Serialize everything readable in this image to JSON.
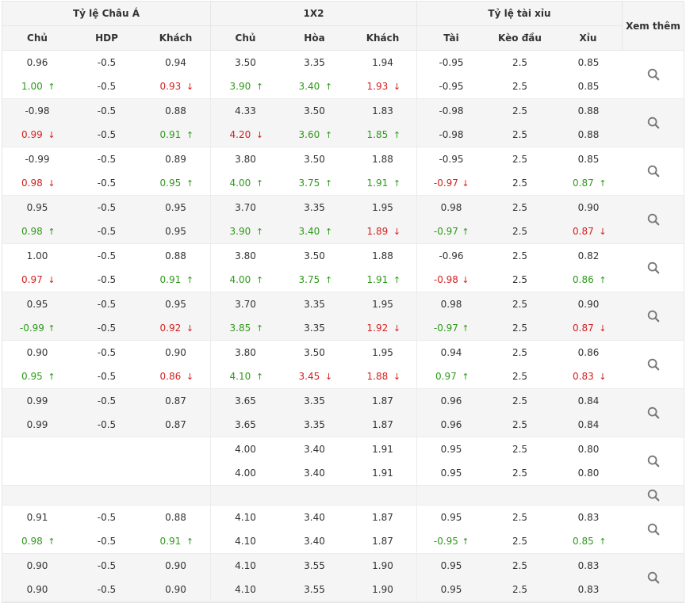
{
  "groups": {
    "asian": "Tỷ lệ Châu Á",
    "x12": "1X2",
    "overunder": "Tỷ lệ tài xỉu",
    "more": "Xem thêm"
  },
  "columns": [
    "Chủ",
    "HDP",
    "Khách",
    "Chủ",
    "Hòa",
    "Khách",
    "Tài",
    "Kèo đầu",
    "Xỉu"
  ],
  "icons": {
    "search": "search-icon"
  },
  "colors": {
    "up": "#2e9a1a",
    "down": "#d42020",
    "alt_bg": "#f5f5f5"
  },
  "rows": [
    {
      "alt": false,
      "lines": [
        [
          [
            "0.96",
            ""
          ],
          [
            "-0.5",
            ""
          ],
          [
            "0.94",
            ""
          ],
          [
            "3.50",
            ""
          ],
          [
            "3.35",
            ""
          ],
          [
            "1.94",
            ""
          ],
          [
            "-0.95",
            ""
          ],
          [
            "2.5",
            ""
          ],
          [
            "0.85",
            ""
          ]
        ],
        [
          [
            "1.00",
            "up"
          ],
          [
            "-0.5",
            ""
          ],
          [
            "0.93",
            "down"
          ],
          [
            "3.90",
            "up"
          ],
          [
            "3.40",
            "up"
          ],
          [
            "1.93",
            "down"
          ],
          [
            "-0.95",
            ""
          ],
          [
            "2.5",
            ""
          ],
          [
            "0.85",
            ""
          ]
        ]
      ]
    },
    {
      "alt": true,
      "lines": [
        [
          [
            "-0.98",
            ""
          ],
          [
            "-0.5",
            ""
          ],
          [
            "0.88",
            ""
          ],
          [
            "4.33",
            ""
          ],
          [
            "3.50",
            ""
          ],
          [
            "1.83",
            ""
          ],
          [
            "-0.98",
            ""
          ],
          [
            "2.5",
            ""
          ],
          [
            "0.88",
            ""
          ]
        ],
        [
          [
            "0.99",
            "down"
          ],
          [
            "-0.5",
            ""
          ],
          [
            "0.91",
            "up"
          ],
          [
            "4.20",
            "down"
          ],
          [
            "3.60",
            "up"
          ],
          [
            "1.85",
            "up"
          ],
          [
            "-0.98",
            ""
          ],
          [
            "2.5",
            ""
          ],
          [
            "0.88",
            ""
          ]
        ]
      ]
    },
    {
      "alt": false,
      "lines": [
        [
          [
            "-0.99",
            ""
          ],
          [
            "-0.5",
            ""
          ],
          [
            "0.89",
            ""
          ],
          [
            "3.80",
            ""
          ],
          [
            "3.50",
            ""
          ],
          [
            "1.88",
            ""
          ],
          [
            "-0.95",
            ""
          ],
          [
            "2.5",
            ""
          ],
          [
            "0.85",
            ""
          ]
        ],
        [
          [
            "0.98",
            "down"
          ],
          [
            "-0.5",
            ""
          ],
          [
            "0.95",
            "up"
          ],
          [
            "4.00",
            "up"
          ],
          [
            "3.75",
            "up"
          ],
          [
            "1.91",
            "up"
          ],
          [
            "-0.97",
            "down"
          ],
          [
            "2.5",
            ""
          ],
          [
            "0.87",
            "up"
          ]
        ]
      ]
    },
    {
      "alt": true,
      "lines": [
        [
          [
            "0.95",
            ""
          ],
          [
            "-0.5",
            ""
          ],
          [
            "0.95",
            ""
          ],
          [
            "3.70",
            ""
          ],
          [
            "3.35",
            ""
          ],
          [
            "1.95",
            ""
          ],
          [
            "0.98",
            ""
          ],
          [
            "2.5",
            ""
          ],
          [
            "0.90",
            ""
          ]
        ],
        [
          [
            "0.98",
            "up"
          ],
          [
            "-0.5",
            ""
          ],
          [
            "0.95",
            ""
          ],
          [
            "3.90",
            "up"
          ],
          [
            "3.40",
            "up"
          ],
          [
            "1.89",
            "down"
          ],
          [
            "-0.97",
            "up"
          ],
          [
            "2.5",
            ""
          ],
          [
            "0.87",
            "down"
          ]
        ]
      ]
    },
    {
      "alt": false,
      "lines": [
        [
          [
            "1.00",
            ""
          ],
          [
            "-0.5",
            ""
          ],
          [
            "0.88",
            ""
          ],
          [
            "3.80",
            ""
          ],
          [
            "3.50",
            ""
          ],
          [
            "1.88",
            ""
          ],
          [
            "-0.96",
            ""
          ],
          [
            "2.5",
            ""
          ],
          [
            "0.82",
            ""
          ]
        ],
        [
          [
            "0.97",
            "down"
          ],
          [
            "-0.5",
            ""
          ],
          [
            "0.91",
            "up"
          ],
          [
            "4.00",
            "up"
          ],
          [
            "3.75",
            "up"
          ],
          [
            "1.91",
            "up"
          ],
          [
            "-0.98",
            "down"
          ],
          [
            "2.5",
            ""
          ],
          [
            "0.86",
            "up"
          ]
        ]
      ]
    },
    {
      "alt": true,
      "lines": [
        [
          [
            "0.95",
            ""
          ],
          [
            "-0.5",
            ""
          ],
          [
            "0.95",
            ""
          ],
          [
            "3.70",
            ""
          ],
          [
            "3.35",
            ""
          ],
          [
            "1.95",
            ""
          ],
          [
            "0.98",
            ""
          ],
          [
            "2.5",
            ""
          ],
          [
            "0.90",
            ""
          ]
        ],
        [
          [
            "-0.99",
            "up"
          ],
          [
            "-0.5",
            ""
          ],
          [
            "0.92",
            "down"
          ],
          [
            "3.85",
            "up"
          ],
          [
            "3.35",
            ""
          ],
          [
            "1.92",
            "down"
          ],
          [
            "-0.97",
            "up"
          ],
          [
            "2.5",
            ""
          ],
          [
            "0.87",
            "down"
          ]
        ]
      ]
    },
    {
      "alt": false,
      "lines": [
        [
          [
            "0.90",
            ""
          ],
          [
            "-0.5",
            ""
          ],
          [
            "0.90",
            ""
          ],
          [
            "3.80",
            ""
          ],
          [
            "3.50",
            ""
          ],
          [
            "1.95",
            ""
          ],
          [
            "0.94",
            ""
          ],
          [
            "2.5",
            ""
          ],
          [
            "0.86",
            ""
          ]
        ],
        [
          [
            "0.95",
            "up"
          ],
          [
            "-0.5",
            ""
          ],
          [
            "0.86",
            "down"
          ],
          [
            "4.10",
            "up"
          ],
          [
            "3.45",
            "down"
          ],
          [
            "1.88",
            "down"
          ],
          [
            "0.97",
            "up"
          ],
          [
            "2.5",
            ""
          ],
          [
            "0.83",
            "down"
          ]
        ]
      ]
    },
    {
      "alt": true,
      "lines": [
        [
          [
            "0.99",
            ""
          ],
          [
            "-0.5",
            ""
          ],
          [
            "0.87",
            ""
          ],
          [
            "3.65",
            ""
          ],
          [
            "3.35",
            ""
          ],
          [
            "1.87",
            ""
          ],
          [
            "0.96",
            ""
          ],
          [
            "2.5",
            ""
          ],
          [
            "0.84",
            ""
          ]
        ],
        [
          [
            "0.99",
            ""
          ],
          [
            "-0.5",
            ""
          ],
          [
            "0.87",
            ""
          ],
          [
            "3.65",
            ""
          ],
          [
            "3.35",
            ""
          ],
          [
            "1.87",
            ""
          ],
          [
            "0.96",
            ""
          ],
          [
            "2.5",
            ""
          ],
          [
            "0.84",
            ""
          ]
        ]
      ]
    },
    {
      "alt": false,
      "lines": [
        [
          [
            "",
            ""
          ],
          [
            "",
            ""
          ],
          [
            "",
            ""
          ],
          [
            "4.00",
            ""
          ],
          [
            "3.40",
            ""
          ],
          [
            "1.91",
            ""
          ],
          [
            "0.95",
            ""
          ],
          [
            "2.5",
            ""
          ],
          [
            "0.80",
            ""
          ]
        ],
        [
          [
            "",
            ""
          ],
          [
            "",
            ""
          ],
          [
            "",
            ""
          ],
          [
            "4.00",
            ""
          ],
          [
            "3.40",
            ""
          ],
          [
            "1.91",
            ""
          ],
          [
            "0.95",
            ""
          ],
          [
            "2.5",
            ""
          ],
          [
            "0.80",
            ""
          ]
        ]
      ]
    },
    {
      "alt": true,
      "short": true,
      "lines": []
    },
    {
      "alt": false,
      "lines": [
        [
          [
            "0.91",
            ""
          ],
          [
            "-0.5",
            ""
          ],
          [
            "0.88",
            ""
          ],
          [
            "4.10",
            ""
          ],
          [
            "3.40",
            ""
          ],
          [
            "1.87",
            ""
          ],
          [
            "0.95",
            ""
          ],
          [
            "2.5",
            ""
          ],
          [
            "0.83",
            ""
          ]
        ],
        [
          [
            "0.98",
            "up"
          ],
          [
            "-0.5",
            ""
          ],
          [
            "0.91",
            "up"
          ],
          [
            "4.10",
            ""
          ],
          [
            "3.40",
            ""
          ],
          [
            "1.87",
            ""
          ],
          [
            "-0.95",
            "up"
          ],
          [
            "2.5",
            ""
          ],
          [
            "0.85",
            "up"
          ]
        ]
      ]
    },
    {
      "alt": true,
      "lines": [
        [
          [
            "0.90",
            ""
          ],
          [
            "-0.5",
            ""
          ],
          [
            "0.90",
            ""
          ],
          [
            "4.10",
            ""
          ],
          [
            "3.55",
            ""
          ],
          [
            "1.90",
            ""
          ],
          [
            "0.95",
            ""
          ],
          [
            "2.5",
            ""
          ],
          [
            "0.83",
            ""
          ]
        ],
        [
          [
            "0.90",
            ""
          ],
          [
            "-0.5",
            ""
          ],
          [
            "0.90",
            ""
          ],
          [
            "4.10",
            ""
          ],
          [
            "3.55",
            ""
          ],
          [
            "1.90",
            ""
          ],
          [
            "0.95",
            ""
          ],
          [
            "2.5",
            ""
          ],
          [
            "0.83",
            ""
          ]
        ]
      ]
    }
  ]
}
